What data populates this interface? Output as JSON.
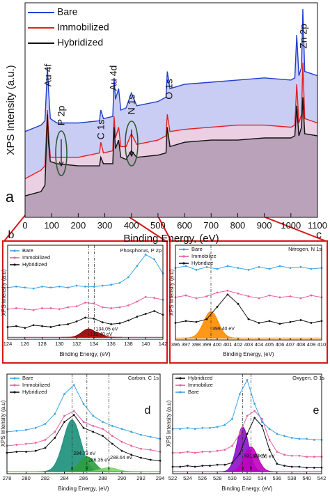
{
  "chart_data": [
    {
      "type": "line",
      "panel": "a",
      "xlabel": "Binding Energy, (eV)",
      "ylabel": "XPS Intensity (a.u.)",
      "xlim": [
        0,
        1100
      ],
      "xticks": [
        0,
        100,
        200,
        300,
        400,
        500,
        600,
        700,
        800,
        900,
        1000,
        1100
      ],
      "ylim": [
        0,
        100
      ],
      "x": [
        0,
        60,
        75,
        84,
        88,
        95,
        120,
        200,
        280,
        285,
        295,
        330,
        335,
        340,
        352,
        360,
        380,
        400,
        420,
        500,
        530,
        535,
        545,
        600,
        700,
        800,
        900,
        1000,
        1015,
        1022,
        1030,
        1040,
        1045,
        1052,
        1100
      ],
      "series": [
        {
          "name": "Bare",
          "color": "#1f3fd0",
          "fill": "#c9cdf4",
          "values": [
            40,
            43,
            45,
            70,
            60,
            46,
            44,
            44,
            45,
            50,
            46,
            47,
            65,
            55,
            60,
            50,
            51,
            58,
            52,
            54,
            56,
            68,
            60,
            62,
            63,
            64,
            65,
            64,
            65,
            85,
            66,
            70,
            97,
            68,
            66
          ]
        },
        {
          "name": "Immobilized",
          "color": "#e02020",
          "fill": "#ebcfe2",
          "values": [
            18,
            22,
            24,
            50,
            40,
            28,
            28,
            28,
            30,
            35,
            30,
            31,
            47,
            37,
            42,
            33,
            33,
            39,
            34,
            36,
            38,
            48,
            40,
            41,
            42,
            43,
            43,
            42,
            43,
            62,
            44,
            48,
            72,
            46,
            44
          ]
        },
        {
          "name": "Hybridized",
          "color": "#111111",
          "fill": "#b9a2ba",
          "values": [
            10,
            12,
            15,
            48,
            35,
            26,
            25,
            24,
            24,
            28,
            25,
            25,
            42,
            32,
            36,
            28,
            27,
            31,
            28,
            29,
            30,
            42,
            33,
            35,
            36,
            36,
            37,
            37,
            38,
            52,
            38,
            42,
            56,
            39,
            38
          ]
        }
      ],
      "annotations": [
        "Au 4f",
        "P 2p",
        "C 1s",
        "Au 4d",
        "N 1s",
        "O 1s",
        "Zn 2p"
      ]
    },
    {
      "type": "line",
      "panel": "b",
      "title": "Phosphorus, P 2p",
      "xlabel": "Binding Energy, (eV)",
      "ylabel": "XPS Intensity (a.u)",
      "xlim": [
        124,
        142
      ],
      "xticks": [
        124,
        126,
        128,
        130,
        132,
        134,
        136,
        138,
        140,
        142
      ],
      "ylim": [
        0,
        100
      ],
      "markers": true,
      "x": [
        124,
        125,
        126,
        127,
        128,
        129,
        130,
        131,
        132,
        133,
        134,
        135,
        136,
        137,
        138,
        139,
        140,
        141,
        142
      ],
      "series": [
        {
          "name": "Bare",
          "color": "#3ba5e8",
          "values": [
            55,
            56,
            55,
            54,
            56,
            55,
            56,
            55,
            57,
            56,
            56,
            57,
            58,
            60,
            66,
            78,
            90,
            85,
            70
          ]
        },
        {
          "name": "Immobilized",
          "color": "#e8609e",
          "values": [
            32,
            33,
            32,
            31,
            33,
            33,
            32,
            34,
            35,
            39,
            38,
            34,
            33,
            34,
            36,
            40,
            45,
            44,
            42
          ]
        },
        {
          "name": "Hybridized",
          "color": "#111111",
          "values": [
            13,
            14,
            12,
            15,
            14,
            13,
            15,
            16,
            19,
            23,
            22,
            18,
            16,
            17,
            20,
            24,
            27,
            30,
            26
          ]
        }
      ],
      "fit_base": 2,
      "fit_base_color": "#d01010",
      "fits": [
        {
          "label": "133.40 eV",
          "center": 133.4,
          "height": 9,
          "width": 0.8,
          "color": "#8b0000"
        },
        {
          "label": "134.05 eV",
          "center": 134.05,
          "height": 6,
          "width": 0.8,
          "color": "#b01010"
        }
      ]
    },
    {
      "type": "line",
      "panel": "c",
      "title": "Nitrogen, N 1s",
      "xlabel": "Binding Energy, (eV)",
      "ylabel": "XPS Intensity (a.u)",
      "xlim": [
        396,
        410
      ],
      "xticks": [
        396,
        397,
        398,
        399,
        400,
        401,
        402,
        403,
        404,
        405,
        406,
        407,
        408,
        409,
        410
      ],
      "ylim": [
        0,
        100
      ],
      "markers": true,
      "x": [
        396,
        397,
        398,
        399,
        400,
        401,
        402,
        403,
        404,
        405,
        406,
        407,
        408,
        409,
        410
      ],
      "series": [
        {
          "name": "Bare",
          "color": "#3ba5e8",
          "values": [
            76,
            78,
            74,
            77,
            75,
            78,
            76,
            74,
            77,
            75,
            78,
            76,
            77,
            75,
            76
          ]
        },
        {
          "name": "Immobilize",
          "color": "#e8609e",
          "values": [
            45,
            47,
            44,
            46,
            50,
            52,
            49,
            46,
            44,
            47,
            45,
            46,
            44,
            47,
            45
          ]
        },
        {
          "name": "Hybridize",
          "color": "#111111",
          "values": [
            18,
            20,
            19,
            22,
            35,
            48,
            38,
            22,
            18,
            20,
            17,
            19,
            21,
            18,
            20
          ]
        }
      ],
      "fit_base": 2,
      "fit_base_color": "#ff8c00",
      "fits": [
        {
          "label": "399.40 eV",
          "center": 399.4,
          "height": 28,
          "width": 0.7,
          "color": "#ff8c00"
        }
      ]
    },
    {
      "type": "line",
      "panel": "d",
      "title": "Carbon, C 1s",
      "xlabel": "Binding Energy, (eV)",
      "ylabel": "XPS Intensity (a.u)",
      "xlim": [
        278,
        294
      ],
      "xticks": [
        278,
        280,
        282,
        284,
        286,
        288,
        290,
        292,
        294
      ],
      "ylim": [
        0,
        100
      ],
      "markers": true,
      "x": [
        278,
        279,
        280,
        281,
        282,
        283,
        284,
        285,
        286,
        287,
        288,
        289,
        290,
        291,
        292,
        293,
        294
      ],
      "series": [
        {
          "name": "Bare",
          "color": "#3ba5e8",
          "values": [
            42,
            43,
            44,
            46,
            50,
            60,
            80,
            89,
            70,
            58,
            52,
            48,
            45,
            42,
            39,
            37,
            35
          ]
        },
        {
          "name": "Immobilized",
          "color": "#e8609e",
          "values": [
            28,
            29,
            30,
            31,
            34,
            42,
            58,
            63,
            52,
            48,
            45,
            38,
            32,
            28,
            25,
            24,
            22
          ]
        },
        {
          "name": "Hybridized",
          "color": "#111111",
          "values": [
            21,
            22,
            22,
            23,
            26,
            36,
            52,
            59,
            46,
            42,
            38,
            30,
            23,
            19,
            16,
            14,
            13
          ]
        }
      ],
      "fit_base": 2,
      "fit_base_color": "#2e9e3e",
      "fits": [
        {
          "label": "284.79 eV",
          "tag": "a",
          "center": 284.79,
          "height": 52,
          "width": 0.9,
          "color": "#1a8f7a"
        },
        {
          "label": "286.35 eV",
          "tag": "b",
          "center": 286.35,
          "height": 15,
          "width": 0.8,
          "color": "#2e9e3e"
        },
        {
          "label": "288.64 eV",
          "tag": "c",
          "center": 288.64,
          "height": 4,
          "width": 0.9,
          "color": "#7cd66a"
        }
      ]
    },
    {
      "type": "line",
      "panel": "e",
      "title": "Oxygen, O 1s",
      "xlabel": "Binding Energy, (eV)",
      "ylabel": "XPS Intensity (a.u)",
      "xlim": [
        522,
        542
      ],
      "xticks": [
        522,
        524,
        526,
        528,
        530,
        532,
        534,
        536,
        538,
        540,
        542
      ],
      "ylim": [
        0,
        100
      ],
      "markers": true,
      "x": [
        522,
        523,
        524,
        525,
        526,
        527,
        528,
        529,
        530,
        531,
        532,
        533,
        534,
        535,
        536,
        537,
        538,
        539,
        540,
        541,
        542
      ],
      "series": [
        {
          "name": "Hybridized",
          "color": "#111111",
          "values": [
            7,
            7,
            8,
            7,
            8,
            8,
            9,
            9,
            11,
            20,
            40,
            56,
            48,
            24,
            10,
            8,
            7,
            7,
            6,
            6,
            6
          ]
        },
        {
          "name": "Immobilize",
          "color": "#e8609e",
          "values": [
            21,
            21,
            22,
            21,
            22,
            22,
            23,
            24,
            28,
            40,
            58,
            63,
            55,
            34,
            22,
            19,
            18,
            18,
            17,
            17,
            17
          ]
        },
        {
          "name": "Bare",
          "color": "#3ba5e8",
          "values": [
            45,
            45,
            46,
            45,
            46,
            46,
            47,
            49,
            55,
            80,
            94,
            70,
            52,
            45,
            40,
            38,
            36,
            35,
            35,
            34,
            34
          ]
        }
      ],
      "fit_base": 2,
      "fit_base_color": "#8a10c8",
      "fits": [
        {
          "label": "531.40 eV",
          "tag": "a",
          "center": 531.4,
          "height": 45,
          "width": 0.8,
          "color": "#8a10c8"
        },
        {
          "label": "532.50 eV",
          "tag": "b",
          "center": 532.5,
          "height": 25,
          "width": 0.9,
          "color": "#c000c0"
        }
      ]
    }
  ]
}
